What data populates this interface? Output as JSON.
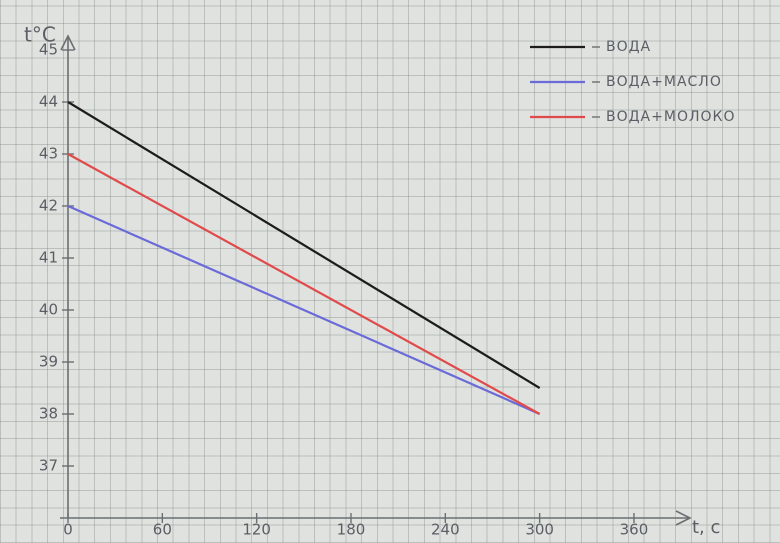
{
  "chart_data": {
    "type": "line",
    "ylabel": "t°C",
    "xlabel": "t, c",
    "x": [
      0,
      300
    ],
    "series": [
      {
        "name": "ВОДА",
        "color": "#1c1c1c",
        "values": [
          44,
          38.5
        ]
      },
      {
        "name": "ВОДА+МАСЛО",
        "color": "#6a6ad8",
        "values": [
          42,
          38
        ]
      },
      {
        "name": "ВОДА+МОЛОКО",
        "color": "#e04a4a",
        "values": [
          43,
          38
        ]
      }
    ],
    "xlim": [
      0,
      395
    ],
    "ylim": [
      36,
      45.3
    ],
    "xticks": [
      0,
      60,
      120,
      180,
      240,
      300,
      360
    ],
    "yticks": [
      37,
      38,
      39,
      40,
      41,
      42,
      43,
      44,
      45
    ],
    "legend": "top-right"
  }
}
